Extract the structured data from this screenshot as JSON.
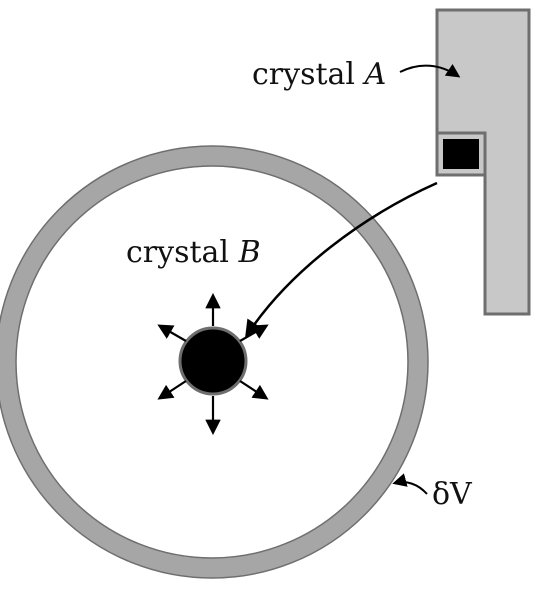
{
  "figure": {
    "labels": {
      "crystal_a_prefix": "crystal ",
      "crystal_a_symbol": "A",
      "crystal_b_prefix": "crystal ",
      "crystal_b_symbol": "B",
      "delta_v": "δV"
    },
    "colors": {
      "crystal_fill": "#c8c8c8",
      "outline": "#6e6e6e",
      "shell": "#a6a6a6",
      "particle": "#000000",
      "arrow": "#000000"
    },
    "icons": {
      "outgoing_arrows": "radiating-arrows",
      "particle": "filled-disk",
      "particle_in_a": "filled-square"
    }
  }
}
